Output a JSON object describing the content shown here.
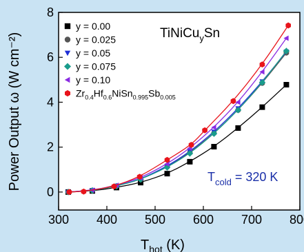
{
  "chart_data": {
    "type": "line",
    "xlabel_main": "T",
    "xlabel_sub": "hot",
    "xlabel_unit": " (K)",
    "ylabel": "Power Output ω (W cm⁻²)",
    "xlim": [
      300,
      800
    ],
    "ylim": [
      -0.8,
      8
    ],
    "x_ticks": [
      300,
      400,
      500,
      600,
      700,
      800
    ],
    "y_ticks": [
      0,
      2,
      4,
      6,
      8
    ],
    "grid": false,
    "legend_placement": "top-left",
    "annotations": {
      "compound": {
        "main": "TiNiCu",
        "sub": "y",
        "rest": "Sn"
      },
      "tcold": {
        "main": "T",
        "sub": "cold",
        "rest": " = 320 K"
      }
    },
    "series": [
      {
        "name": "y = 0.00",
        "marker": "square",
        "color": "#000000",
        "x": [
          320,
          370,
          420,
          470,
          525,
          572,
          622,
          672,
          722,
          772
        ],
        "y": [
          0.0,
          0.05,
          0.2,
          0.42,
          0.82,
          1.35,
          2.02,
          2.85,
          3.78,
          4.78
        ]
      },
      {
        "name": "y = 0.025",
        "marker": "circle",
        "color": "#555555",
        "x": [
          320,
          370,
          420,
          470,
          525,
          572,
          622,
          672,
          722,
          772
        ],
        "y": [
          0.0,
          0.07,
          0.26,
          0.56,
          1.12,
          1.75,
          2.62,
          3.65,
          4.85,
          6.2
        ]
      },
      {
        "name": "y = 0.05",
        "marker": "triangle-down",
        "color": "#1f2fd6",
        "x": [
          320,
          370,
          420,
          470,
          525,
          572,
          622,
          672,
          722,
          772
        ],
        "y": [
          0.0,
          0.07,
          0.27,
          0.57,
          1.15,
          1.8,
          2.68,
          3.72,
          4.92,
          6.25
        ]
      },
      {
        "name": "y = 0.075",
        "marker": "diamond",
        "color": "#1a9c8c",
        "x": [
          320,
          370,
          420,
          470,
          525,
          572,
          622,
          672,
          722,
          772
        ],
        "y": [
          0.0,
          0.07,
          0.26,
          0.56,
          1.1,
          1.72,
          2.6,
          3.65,
          4.88,
          6.28
        ]
      },
      {
        "name": "y = 0.10",
        "marker": "triangle-left",
        "color": "#8a2be2",
        "x": [
          320,
          370,
          420,
          470,
          525,
          572,
          622,
          672,
          722,
          772
        ],
        "y": [
          0.0,
          0.08,
          0.3,
          0.63,
          1.25,
          1.95,
          2.88,
          4.0,
          5.35,
          6.85
        ]
      },
      {
        "name": "Zr0.4Hf0.6NiSn0.995Sb0.005",
        "marker": "hexagon",
        "color": "#e8141b",
        "x": [
          322,
          352,
          415,
          468,
          525,
          575,
          603,
          662,
          722,
          776
        ],
        "y": [
          0.0,
          0.02,
          0.25,
          0.68,
          1.43,
          2.1,
          2.75,
          4.05,
          5.68,
          7.42
        ]
      }
    ]
  }
}
